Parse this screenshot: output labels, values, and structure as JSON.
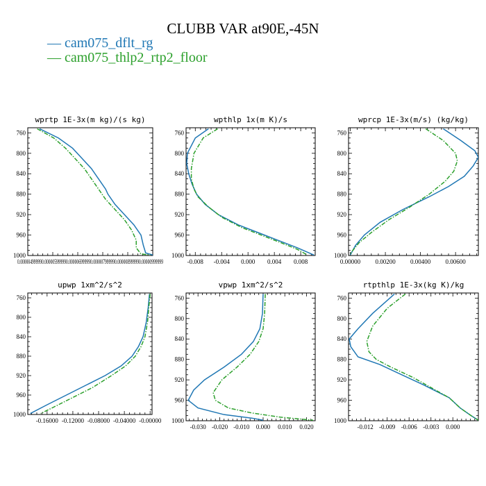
{
  "figure": {
    "title": "CLUBB VAR at90E,-45N",
    "legend": [
      {
        "label": "cam075_dflt_rg",
        "color": "#1f77b4",
        "dash": "solid"
      },
      {
        "label": "cam075_thlp2_rtp2_floor",
        "color": "#2ca02c",
        "dash": "dashdot"
      }
    ]
  },
  "chart_data": [
    {
      "type": "line",
      "title": "wprtp  1E-3x(m kg)/(s kg)",
      "ylim": [
        1000,
        750
      ],
      "yticks": [
        760,
        800,
        840,
        880,
        920,
        960,
        1000
      ],
      "xlim": [
        4.9e-06,
        1.02e-05
      ],
      "xticks": [],
      "xtick_labels": [
        "0.000004999990.000005999990.000006999990.000007999990.000008999990.00000999999"
      ],
      "series": [
        {
          "name": "cam075_dflt_rg",
          "color": "#1f77b4",
          "dash": "solid",
          "points": [
            [
              5.4e-06,
              752
            ],
            [
              6.2e-06,
              770
            ],
            [
              6.8e-06,
              790
            ],
            [
              7.2e-06,
              810
            ],
            [
              7.6e-06,
              830
            ],
            [
              7.9e-06,
              850
            ],
            [
              8.2e-06,
              870
            ],
            [
              8.3e-06,
              880
            ],
            [
              8.6e-06,
              900
            ],
            [
              9e-06,
              920
            ],
            [
              9.4e-06,
              940
            ],
            [
              9.7e-06,
              960
            ],
            [
              9.8e-06,
              980
            ],
            [
              9.9e-06,
              995
            ],
            [
              1.02e-05,
              999
            ]
          ]
        },
        {
          "name": "cam075_thlp2_rtp2_floor",
          "color": "#2ca02c",
          "dash": "dashdot",
          "points": [
            [
              5.3e-06,
              752
            ],
            [
              6e-06,
              770
            ],
            [
              6.5e-06,
              790
            ],
            [
              6.9e-06,
              810
            ],
            [
              7.3e-06,
              830
            ],
            [
              7.6e-06,
              850
            ],
            [
              7.9e-06,
              870
            ],
            [
              8.2e-06,
              890
            ],
            [
              8.6e-06,
              910
            ],
            [
              9e-06,
              930
            ],
            [
              9.3e-06,
              950
            ],
            [
              9.5e-06,
              970
            ],
            [
              9.5e-06,
              985
            ],
            [
              9.7e-06,
              997
            ],
            [
              1.01e-05,
              999
            ]
          ]
        }
      ]
    },
    {
      "type": "line",
      "title": "wpthlp  1x(m K)/s",
      "ylim": [
        1000,
        750
      ],
      "yticks": [
        760,
        800,
        840,
        880,
        920,
        960,
        1000
      ],
      "xlim": [
        -0.0094,
        0.0102
      ],
      "xticks": [
        -0.008,
        -0.004,
        0.0,
        0.004,
        0.008
      ],
      "xtick_labels": [
        "-0.008",
        "-0.004",
        "0.000",
        "0.004",
        "0.008"
      ],
      "series": [
        {
          "name": "cam075_dflt_rg",
          "color": "#1f77b4",
          "dash": "solid",
          "points": [
            [
              -0.006,
              752
            ],
            [
              -0.008,
              770
            ],
            [
              -0.0092,
              800
            ],
            [
              -0.0093,
              820
            ],
            [
              -0.009,
              840
            ],
            [
              -0.0085,
              860
            ],
            [
              -0.0078,
              880
            ],
            [
              -0.0065,
              900
            ],
            [
              -0.0045,
              920
            ],
            [
              -0.0015,
              940
            ],
            [
              0.0015,
              955
            ],
            [
              0.0045,
              970
            ],
            [
              0.0075,
              985
            ],
            [
              0.01,
              999
            ]
          ]
        },
        {
          "name": "cam075_thlp2_rtp2_floor",
          "color": "#2ca02c",
          "dash": "dashdot",
          "points": [
            [
              -0.0046,
              752
            ],
            [
              -0.0068,
              770
            ],
            [
              -0.0082,
              800
            ],
            [
              -0.0086,
              830
            ],
            [
              -0.0086,
              850
            ],
            [
              -0.0082,
              870
            ],
            [
              -0.0076,
              885
            ],
            [
              -0.006,
              905
            ],
            [
              -0.004,
              925
            ],
            [
              -0.001,
              945
            ],
            [
              0.002,
              960
            ],
            [
              0.005,
              975
            ],
            [
              0.0075,
              988
            ],
            [
              0.009,
              999
            ]
          ]
        }
      ]
    },
    {
      "type": "line",
      "title": "wprcp  1E-3x(m/s) (kg/kg)",
      "ylim": [
        1000,
        750
      ],
      "yticks": [
        760,
        800,
        840,
        880,
        920,
        960,
        1000
      ],
      "xlim": [
        -0.0001,
        0.0073
      ],
      "xticks": [
        0.0,
        0.002,
        0.004,
        0.006
      ],
      "xtick_labels": [
        "0.00000",
        "0.00200",
        "0.00400",
        "0.00600"
      ],
      "series": [
        {
          "name": "cam075_dflt_rg",
          "color": "#1f77b4",
          "dash": "solid",
          "points": [
            [
              0.0053,
              752
            ],
            [
              0.0063,
              775
            ],
            [
              0.0071,
              795
            ],
            [
              0.0073,
              808
            ],
            [
              0.007,
              825
            ],
            [
              0.0065,
              845
            ],
            [
              0.0056,
              865
            ],
            [
              0.0045,
              885
            ],
            [
              0.003,
              910
            ],
            [
              0.0017,
              935
            ],
            [
              0.0008,
              960
            ],
            [
              0.0003,
              980
            ],
            [
              0.0,
              999
            ]
          ]
        },
        {
          "name": "cam075_thlp2_rtp2_floor",
          "color": "#2ca02c",
          "dash": "dashdot",
          "points": [
            [
              0.0043,
              752
            ],
            [
              0.0053,
              775
            ],
            [
              0.006,
              800
            ],
            [
              0.0061,
              815
            ],
            [
              0.0059,
              835
            ],
            [
              0.0054,
              855
            ],
            [
              0.0045,
              880
            ],
            [
              0.0034,
              905
            ],
            [
              0.0022,
              930
            ],
            [
              0.0012,
              955
            ],
            [
              0.0005,
              975
            ],
            [
              0.0001,
              992
            ],
            [
              0.0,
              999
            ]
          ]
        }
      ]
    },
    {
      "type": "line",
      "title": "upwp  1xm^2/s^2",
      "ylim": [
        1000,
        750
      ],
      "yticks": [
        760,
        800,
        840,
        880,
        920,
        960,
        1000
      ],
      "xlim": [
        -0.19,
        0.003
      ],
      "xticks": [
        -0.16,
        -0.12,
        -0.08,
        -0.04,
        0.0
      ],
      "xtick_labels": [
        "-0.16000",
        "-0.12000",
        "-0.08000",
        "-0.04000",
        "-0.00000"
      ],
      "series": [
        {
          "name": "cam075_dflt_rg",
          "color": "#1f77b4",
          "dash": "solid",
          "points": [
            [
              -0.001,
              752
            ],
            [
              -0.003,
              780
            ],
            [
              -0.006,
              810
            ],
            [
              -0.011,
              840
            ],
            [
              -0.018,
              860
            ],
            [
              -0.028,
              880
            ],
            [
              -0.045,
              900
            ],
            [
              -0.07,
              920
            ],
            [
              -0.1,
              940
            ],
            [
              -0.13,
              960
            ],
            [
              -0.16,
              980
            ],
            [
              -0.186,
              998
            ]
          ]
        },
        {
          "name": "cam075_thlp2_rtp2_floor",
          "color": "#2ca02c",
          "dash": "dashdot",
          "points": [
            [
              0.0,
              752
            ],
            [
              -0.002,
              780
            ],
            [
              -0.004,
              810
            ],
            [
              -0.008,
              840
            ],
            [
              -0.014,
              860
            ],
            [
              -0.023,
              880
            ],
            [
              -0.038,
              900
            ],
            [
              -0.06,
              920
            ],
            [
              -0.09,
              945
            ],
            [
              -0.12,
              965
            ],
            [
              -0.15,
              985
            ],
            [
              -0.17,
              998
            ]
          ]
        }
      ]
    },
    {
      "type": "line",
      "title": "vpwp  1xm^2/s^2",
      "ylim": [
        1000,
        750
      ],
      "yticks": [
        760,
        800,
        840,
        880,
        920,
        960,
        1000
      ],
      "xlim": [
        -0.0355,
        0.024
      ],
      "xticks": [
        -0.03,
        -0.02,
        -0.01,
        0.0,
        0.01,
        0.02
      ],
      "xtick_labels": [
        "-0.030",
        "-0.020",
        "-0.010",
        "0.000",
        "0.010",
        "0.020"
      ],
      "series": [
        {
          "name": "cam075_dflt_rg",
          "color": "#1f77b4",
          "dash": "solid",
          "points": [
            [
              0.0,
              752
            ],
            [
              -0.0003,
              790
            ],
            [
              -0.0015,
              820
            ],
            [
              -0.0045,
              845
            ],
            [
              -0.01,
              870
            ],
            [
              -0.018,
              895
            ],
            [
              -0.027,
              920
            ],
            [
              -0.032,
              940
            ],
            [
              -0.0345,
              960
            ],
            [
              -0.03,
              975
            ],
            [
              -0.018,
              988
            ],
            [
              -0.005,
              995
            ],
            [
              0.0,
              999
            ]
          ]
        },
        {
          "name": "cam075_thlp2_rtp2_floor",
          "color": "#2ca02c",
          "dash": "dashdot",
          "points": [
            [
              0.001,
              752
            ],
            [
              0.0007,
              790
            ],
            [
              0.0,
              820
            ],
            [
              -0.002,
              845
            ],
            [
              -0.006,
              870
            ],
            [
              -0.012,
              895
            ],
            [
              -0.019,
              920
            ],
            [
              -0.023,
              945
            ],
            [
              -0.022,
              960
            ],
            [
              -0.016,
              975
            ],
            [
              -0.005,
              985
            ],
            [
              0.008,
              993
            ],
            [
              0.023,
              999
            ]
          ]
        }
      ]
    },
    {
      "type": "line",
      "title": "rtpthlp  1E-3x(kg K)/kg",
      "ylim": [
        1000,
        750
      ],
      "yticks": [
        760,
        800,
        840,
        880,
        920,
        960,
        1000
      ],
      "xlim": [
        -0.0143,
        0.0035
      ],
      "xticks": [
        -0.012,
        -0.009,
        -0.006,
        -0.003,
        0.0
      ],
      "xtick_labels": [
        "-0.012",
        "-0.009",
        "-0.006",
        "-0.003",
        "0.000"
      ],
      "series": [
        {
          "name": "cam075_dflt_rg",
          "color": "#1f77b4",
          "dash": "solid",
          "points": [
            [
              -0.008,
              752
            ],
            [
              -0.011,
              790
            ],
            [
              -0.013,
              820
            ],
            [
              -0.0142,
              840
            ],
            [
              -0.014,
              855
            ],
            [
              -0.013,
              875
            ],
            [
              -0.01,
              890
            ],
            [
              -0.007,
              910
            ],
            [
              -0.004,
              930
            ],
            [
              -0.0005,
              955
            ],
            [
              0.001,
              975
            ],
            [
              0.0025,
              990
            ],
            [
              0.0035,
              999
            ]
          ]
        },
        {
          "name": "cam075_thlp2_rtp2_floor",
          "color": "#2ca02c",
          "dash": "dashdot",
          "points": [
            [
              -0.0065,
              752
            ],
            [
              -0.009,
              780
            ],
            [
              -0.011,
              815
            ],
            [
              -0.0118,
              845
            ],
            [
              -0.0115,
              865
            ],
            [
              -0.0105,
              880
            ],
            [
              -0.0085,
              895
            ],
            [
              -0.0055,
              915
            ],
            [
              -0.003,
              935
            ],
            [
              -0.0005,
              955
            ],
            [
              0.001,
              975
            ],
            [
              0.0025,
              990
            ],
            [
              0.0035,
              999
            ]
          ]
        }
      ]
    }
  ]
}
